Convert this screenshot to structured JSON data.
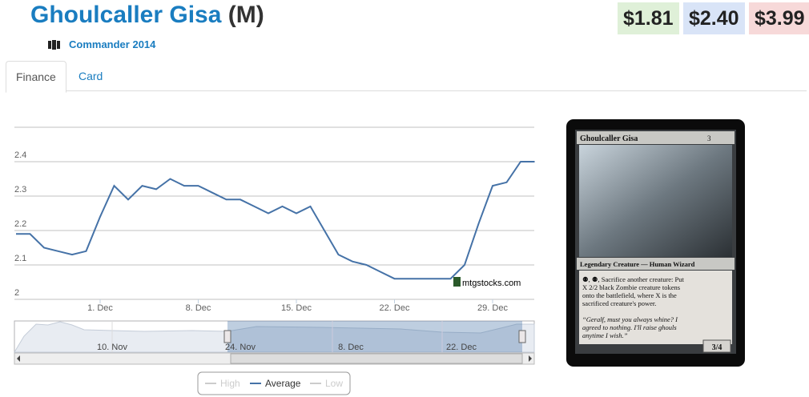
{
  "header": {
    "title": "Ghoulcaller Gisa",
    "rarity": "(M)",
    "set": "Commander 2014",
    "prices": [
      "$1.81",
      "$2.40",
      "$3.99"
    ]
  },
  "tabs": [
    "Finance",
    "Card"
  ],
  "chart_data": {
    "type": "line",
    "categories": [
      "25. Nov",
      "26. Nov",
      "27. Nov",
      "28. Nov",
      "29. Nov",
      "30. Nov",
      "1. Dec",
      "2. Dec",
      "3. Dec",
      "4. Dec",
      "5. Dec",
      "6. Dec",
      "7. Dec",
      "8. Dec",
      "9. Dec",
      "10. Dec",
      "11. Dec",
      "12. Dec",
      "13. Dec",
      "14. Dec",
      "15. Dec",
      "16. Dec",
      "17. Dec",
      "18. Dec",
      "19. Dec",
      "20. Dec",
      "21. Dec",
      "22. Dec",
      "23. Dec",
      "24. Dec",
      "25. Dec",
      "26. Dec",
      "27. Dec",
      "28. Dec",
      "29. Dec",
      "30. Dec",
      "31. Dec",
      "1. Jan"
    ],
    "series": [
      {
        "name": "Average",
        "color": "#4572a7",
        "values": [
          2.19,
          2.19,
          2.15,
          2.14,
          2.13,
          2.14,
          2.24,
          2.33,
          2.29,
          2.33,
          2.32,
          2.35,
          2.33,
          2.33,
          2.31,
          2.29,
          2.29,
          2.27,
          2.25,
          2.27,
          2.25,
          2.27,
          2.2,
          2.13,
          2.11,
          2.1,
          2.08,
          2.06,
          2.06,
          2.06,
          2.06,
          2.06,
          2.1,
          2.22,
          2.33,
          2.34,
          2.4,
          2.4
        ]
      }
    ],
    "hidden_series": [
      "High",
      "Low"
    ],
    "ylim": [
      2,
      2.5
    ],
    "yticks": [
      2,
      2.1,
      2.2,
      2.3,
      2.4
    ],
    "xticks": [
      "1. Dec",
      "8. Dec",
      "15. Dec",
      "22. Dec",
      "29. Dec"
    ],
    "grid": true,
    "watermark": "mtgstocks.com",
    "navigator_labels": [
      "10. Nov",
      "24. Nov",
      "8. Dec",
      "22. Dec"
    ]
  },
  "card": {
    "name": "Ghoulcaller Gisa",
    "mana": "3",
    "type_line": "Legendary Creature — Human Wizard",
    "rules": [
      "⚉, ⚉, Sacrifice another creature: Put",
      "X 2/2 black Zombie creature tokens",
      "onto the battlefield, where X is the",
      "sacrificed creature's power."
    ],
    "flavor": [
      "“Geralf, must you always whine? I",
      "agreed to nothing. I'll raise ghouls",
      "anytime I wish.”"
    ],
    "pt": "3/4"
  }
}
